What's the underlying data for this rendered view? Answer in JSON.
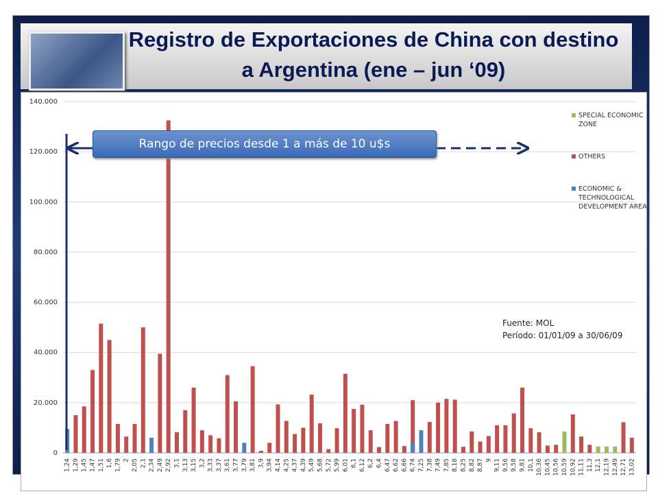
{
  "chart_data": {
    "type": "bar",
    "title": "Registro de Exportaciones de China con destino a Argentina (ene – jun ‘09)",
    "annotations": [
      "Rango de precios desde 1 a más de 10 u$s",
      "Fuente: MOL",
      "Período: 01/01/09 a 30/06/09"
    ],
    "categories": [
      "1,24",
      "1,29",
      "1,45",
      "1,47",
      "1,51",
      "1,6",
      "1,79",
      "2",
      "2,05",
      "2,1",
      "2,34",
      "2,49",
      "2,92",
      "3,1",
      "3,13",
      "3,15",
      "3,2",
      "3,33",
      "3,37",
      "3,61",
      "3,77",
      "3,79",
      "3,81",
      "3,9",
      "3,94",
      "4,14",
      "4,25",
      "4,37",
      "4,39",
      "5,49",
      "5,68",
      "5,72",
      "5,99",
      "6,01",
      "6,1",
      "6,12",
      "6,2",
      "6,4",
      "6,47",
      "6,62",
      "6,66",
      "6,74",
      "7,25",
      "7,38",
      "7,49",
      "7,85",
      "8,18",
      "8,25",
      "8,82",
      "8,87",
      "9",
      "9,11",
      "9,56",
      "9,58",
      "9,81",
      "10,1",
      "10,36",
      "10,45",
      "10,56",
      "10,59",
      "10,92",
      "11,11",
      "11,3",
      "12,1",
      "12,19",
      "12,49",
      "12,71",
      "13,02"
    ],
    "series": [
      {
        "name": "SPECIAL ECONOMIC ZONE",
        "color": "#9bbb59",
        "values": [
          null,
          null,
          null,
          null,
          null,
          null,
          null,
          null,
          null,
          null,
          null,
          null,
          null,
          null,
          null,
          null,
          null,
          null,
          null,
          null,
          null,
          null,
          null,
          null,
          null,
          null,
          null,
          null,
          null,
          null,
          null,
          null,
          null,
          null,
          null,
          null,
          null,
          null,
          null,
          null,
          null,
          null,
          null,
          null,
          null,
          null,
          null,
          null,
          null,
          null,
          null,
          null,
          null,
          null,
          null,
          null,
          null,
          null,
          null,
          8500,
          null,
          null,
          null,
          2500,
          2500,
          2500,
          null,
          null
        ]
      },
      {
        "name": "OTHERS",
        "color": "#c0504d",
        "values": [
          null,
          15000,
          18500,
          33000,
          51500,
          45000,
          11500,
          6500,
          11500,
          50000,
          null,
          39500,
          132500,
          8200,
          17000,
          26000,
          9000,
          7000,
          5800,
          31000,
          20500,
          null,
          34500,
          800,
          4000,
          19300,
          12700,
          7500,
          10000,
          23200,
          11800,
          1500,
          9800,
          31500,
          17500,
          19200,
          9000,
          2300,
          11500,
          12700,
          2700,
          21000,
          null,
          12300,
          20000,
          21500,
          21200,
          2400,
          8500,
          4500,
          6700,
          11000,
          11000,
          15700,
          26000,
          9800,
          8200,
          2900,
          3200,
          null,
          15300,
          6500,
          3200,
          null,
          null,
          null,
          12200,
          6000
        ]
      },
      {
        "name": "ECONOMIC & TECHNOLOGICAL DEVELOPMENT AREA",
        "color": "#4f81bd",
        "values": [
          9500,
          null,
          null,
          null,
          null,
          null,
          null,
          null,
          null,
          null,
          6000,
          null,
          null,
          null,
          null,
          null,
          null,
          null,
          null,
          null,
          null,
          4000,
          null,
          null,
          null,
          null,
          null,
          null,
          null,
          null,
          null,
          null,
          null,
          null,
          null,
          null,
          null,
          null,
          null,
          null,
          null,
          4000,
          9000,
          null,
          null,
          null,
          null,
          null,
          null,
          null,
          null,
          null,
          null,
          null,
          null,
          null,
          null,
          null,
          null,
          null,
          null,
          null,
          null,
          null,
          null,
          null,
          null,
          null
        ]
      }
    ],
    "ylim": [
      0,
      140000
    ],
    "yticks": [
      0,
      {
        "value": 20000,
        "label": "20.000"
      },
      {
        "value": 40000,
        "label": "40.000"
      },
      {
        "value": 60000,
        "label": "60.000"
      },
      {
        "value": 80000,
        "label": "80.000"
      },
      {
        "value": 100000,
        "label": "100.000"
      },
      {
        "value": 120000,
        "label": "120.000"
      },
      {
        "value": 140000,
        "label": "140.000"
      }
    ],
    "grid": true
  }
}
